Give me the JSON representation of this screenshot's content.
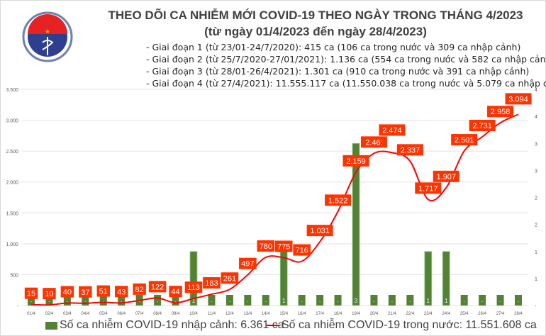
{
  "logo": {
    "top_text": "BỘ Y TẾ",
    "bottom_text": "MINISTRY OF HEALTH"
  },
  "title": "THEO DÕI CA NHIỄM MỚI COVID-19 THEO NGÀY TRONG THÁNG 4/2023",
  "subtitle": "(từ ngày 01/4/2023 đến ngày 28/4/2023)",
  "phases": [
    "- Giai đoạn 1 (từ 23/01-24/7/2020): 415 ca (106 ca trong nước và 309 ca nhập cảnh)",
    "- Giai đoạn 2 (từ 25/7/2020-27/01/2021): 1.136 ca (554 ca trong nước và 582 ca nhập cảnh)",
    "- Giai đoạn 3 (từ 28/01-26/4/2021): 1.301 ca (910 ca trong nước và 391 ca nhập cảnh)",
    "- Giai đoạn 4 (từ 27/4/2021): 11.555.117 ca (11.550.038 ca trong nước và 5.079 ca nhập cảnh)"
  ],
  "legend": {
    "bar": "Số ca nhiễm COVID-19 nhập cảnh: 6.361 ca",
    "line": "Số ca nhiễm COVID-19 trong nước: 11.551.608 ca"
  },
  "chart_data": {
    "type": "bar+line",
    "categories": [
      "01/4",
      "02/4",
      "03/4",
      "04/4",
      "05/4",
      "06/4",
      "07/4",
      "08/4",
      "09/4",
      "10/4",
      "11/4",
      "12/4",
      "13/4",
      "14/4",
      "15/4",
      "16/4",
      "17/4",
      "18/4",
      "19/4",
      "20/4",
      "21/4",
      "22/4",
      "23/4",
      "24/4",
      "25/4",
      "26/4",
      "27/4",
      "28/4"
    ],
    "series": [
      {
        "name": "Số ca nhiễm COVID-19 nhập cảnh: 6.361 ca",
        "type": "bar",
        "axis": "right",
        "color": "#548235",
        "values": [
          0,
          0,
          0,
          0,
          0,
          0,
          0,
          0,
          0,
          1,
          0,
          0,
          0,
          0,
          1,
          0,
          0,
          0,
          3,
          0,
          0,
          0,
          1,
          1,
          0,
          0,
          0,
          0
        ]
      },
      {
        "name": "Số ca nhiễm COVID-19 trong nước: 11.551.608 ca",
        "type": "line",
        "axis": "left",
        "color": "#ff0000",
        "values": [
          15,
          10,
          40,
          37,
          51,
          43,
          82,
          122,
          44,
          113,
          183,
          261,
          497,
          780,
          775,
          716,
          1031,
          1522,
          2159,
          2463,
          2474,
          2337,
          1717,
          1907,
          2501,
          2731,
          2958,
          3094
        ],
        "labels": [
          "15",
          "10",
          "40",
          "37",
          "51",
          "43",
          "82",
          "122",
          "44",
          "113",
          "183",
          "261",
          "497",
          "780",
          "775",
          "716",
          "1.031",
          "1.522",
          "2.159",
          "2.46:",
          "2.474",
          "2.337",
          "1.717",
          "1.907",
          "2.501",
          "2.731",
          "2.958",
          "3.094"
        ]
      }
    ],
    "left_axis": {
      "ylim": [
        0,
        3500
      ],
      "ticks": [
        "-",
        "500",
        "1.000",
        "1.500",
        "2.000",
        "2.500",
        "3.000",
        "3.500"
      ]
    },
    "right_axis": {
      "ylim": [
        0,
        4
      ],
      "ticks": [
        "-",
        "1",
        "1",
        "2",
        "2",
        "3",
        "3",
        "4",
        "4"
      ]
    },
    "grid": true,
    "legend_position": "bottom",
    "label_color": "#ff3300"
  }
}
